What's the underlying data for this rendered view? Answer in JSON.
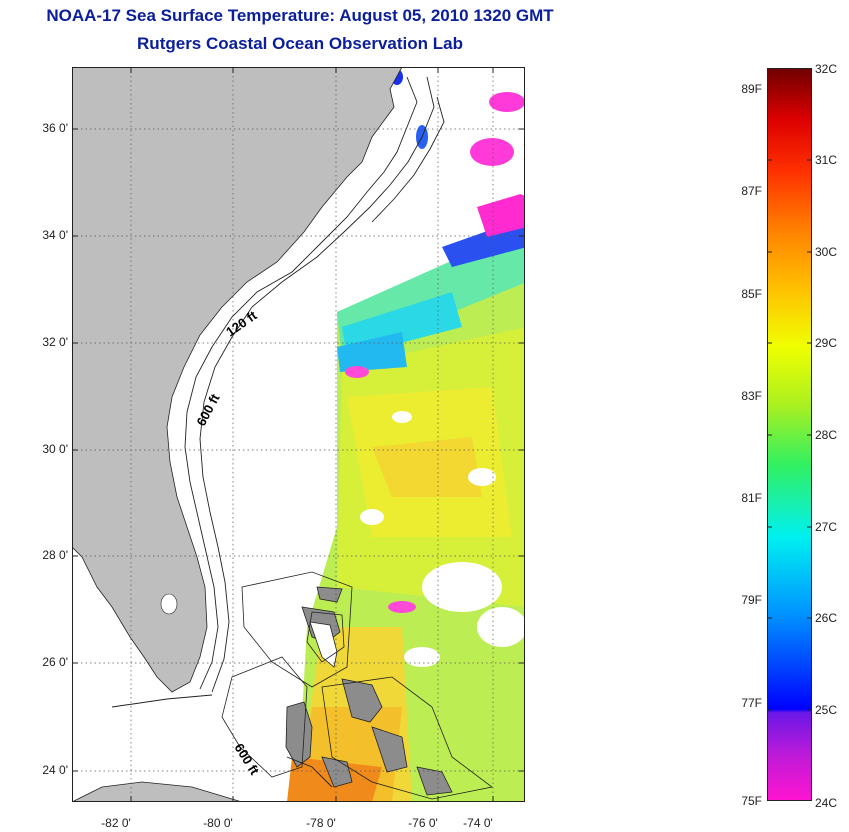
{
  "title": "NOAA-17 Sea Surface Temperature:  August 05, 2010 1320 GMT",
  "subtitle": "Rutgers Coastal Ocean Observation Lab",
  "map": {
    "lat_ticks": [
      "36 0'",
      "34 0'",
      "32 0'",
      "30 0'",
      "28 0'",
      "26 0'",
      "24 0'"
    ],
    "lon_ticks": [
      "-82 0'",
      "-80 0'",
      "-78 0'",
      "-76 0'",
      "-74 0'"
    ],
    "isobath_labels": [
      "120 ft",
      "600 ft",
      "600 ft"
    ],
    "land_color": "#bebebe",
    "no_data_color": "#ffffff"
  },
  "colorbar": {
    "fahrenheit_labels": [
      "89F",
      "87F",
      "85F",
      "83F",
      "81F",
      "79F",
      "77F",
      "75F"
    ],
    "celsius_labels": [
      "32C",
      "31C",
      "30C",
      "29C",
      "28C",
      "27C",
      "26C",
      "25C",
      "24C"
    ],
    "colors": [
      "#ff14d0",
      "#8a1fe0",
      "#0000ff",
      "#009cff",
      "#00f0f0",
      "#33f060",
      "#ccff00",
      "#ffdd00",
      "#ff9000",
      "#ff3000",
      "#dd0000",
      "#7a0000"
    ]
  }
}
